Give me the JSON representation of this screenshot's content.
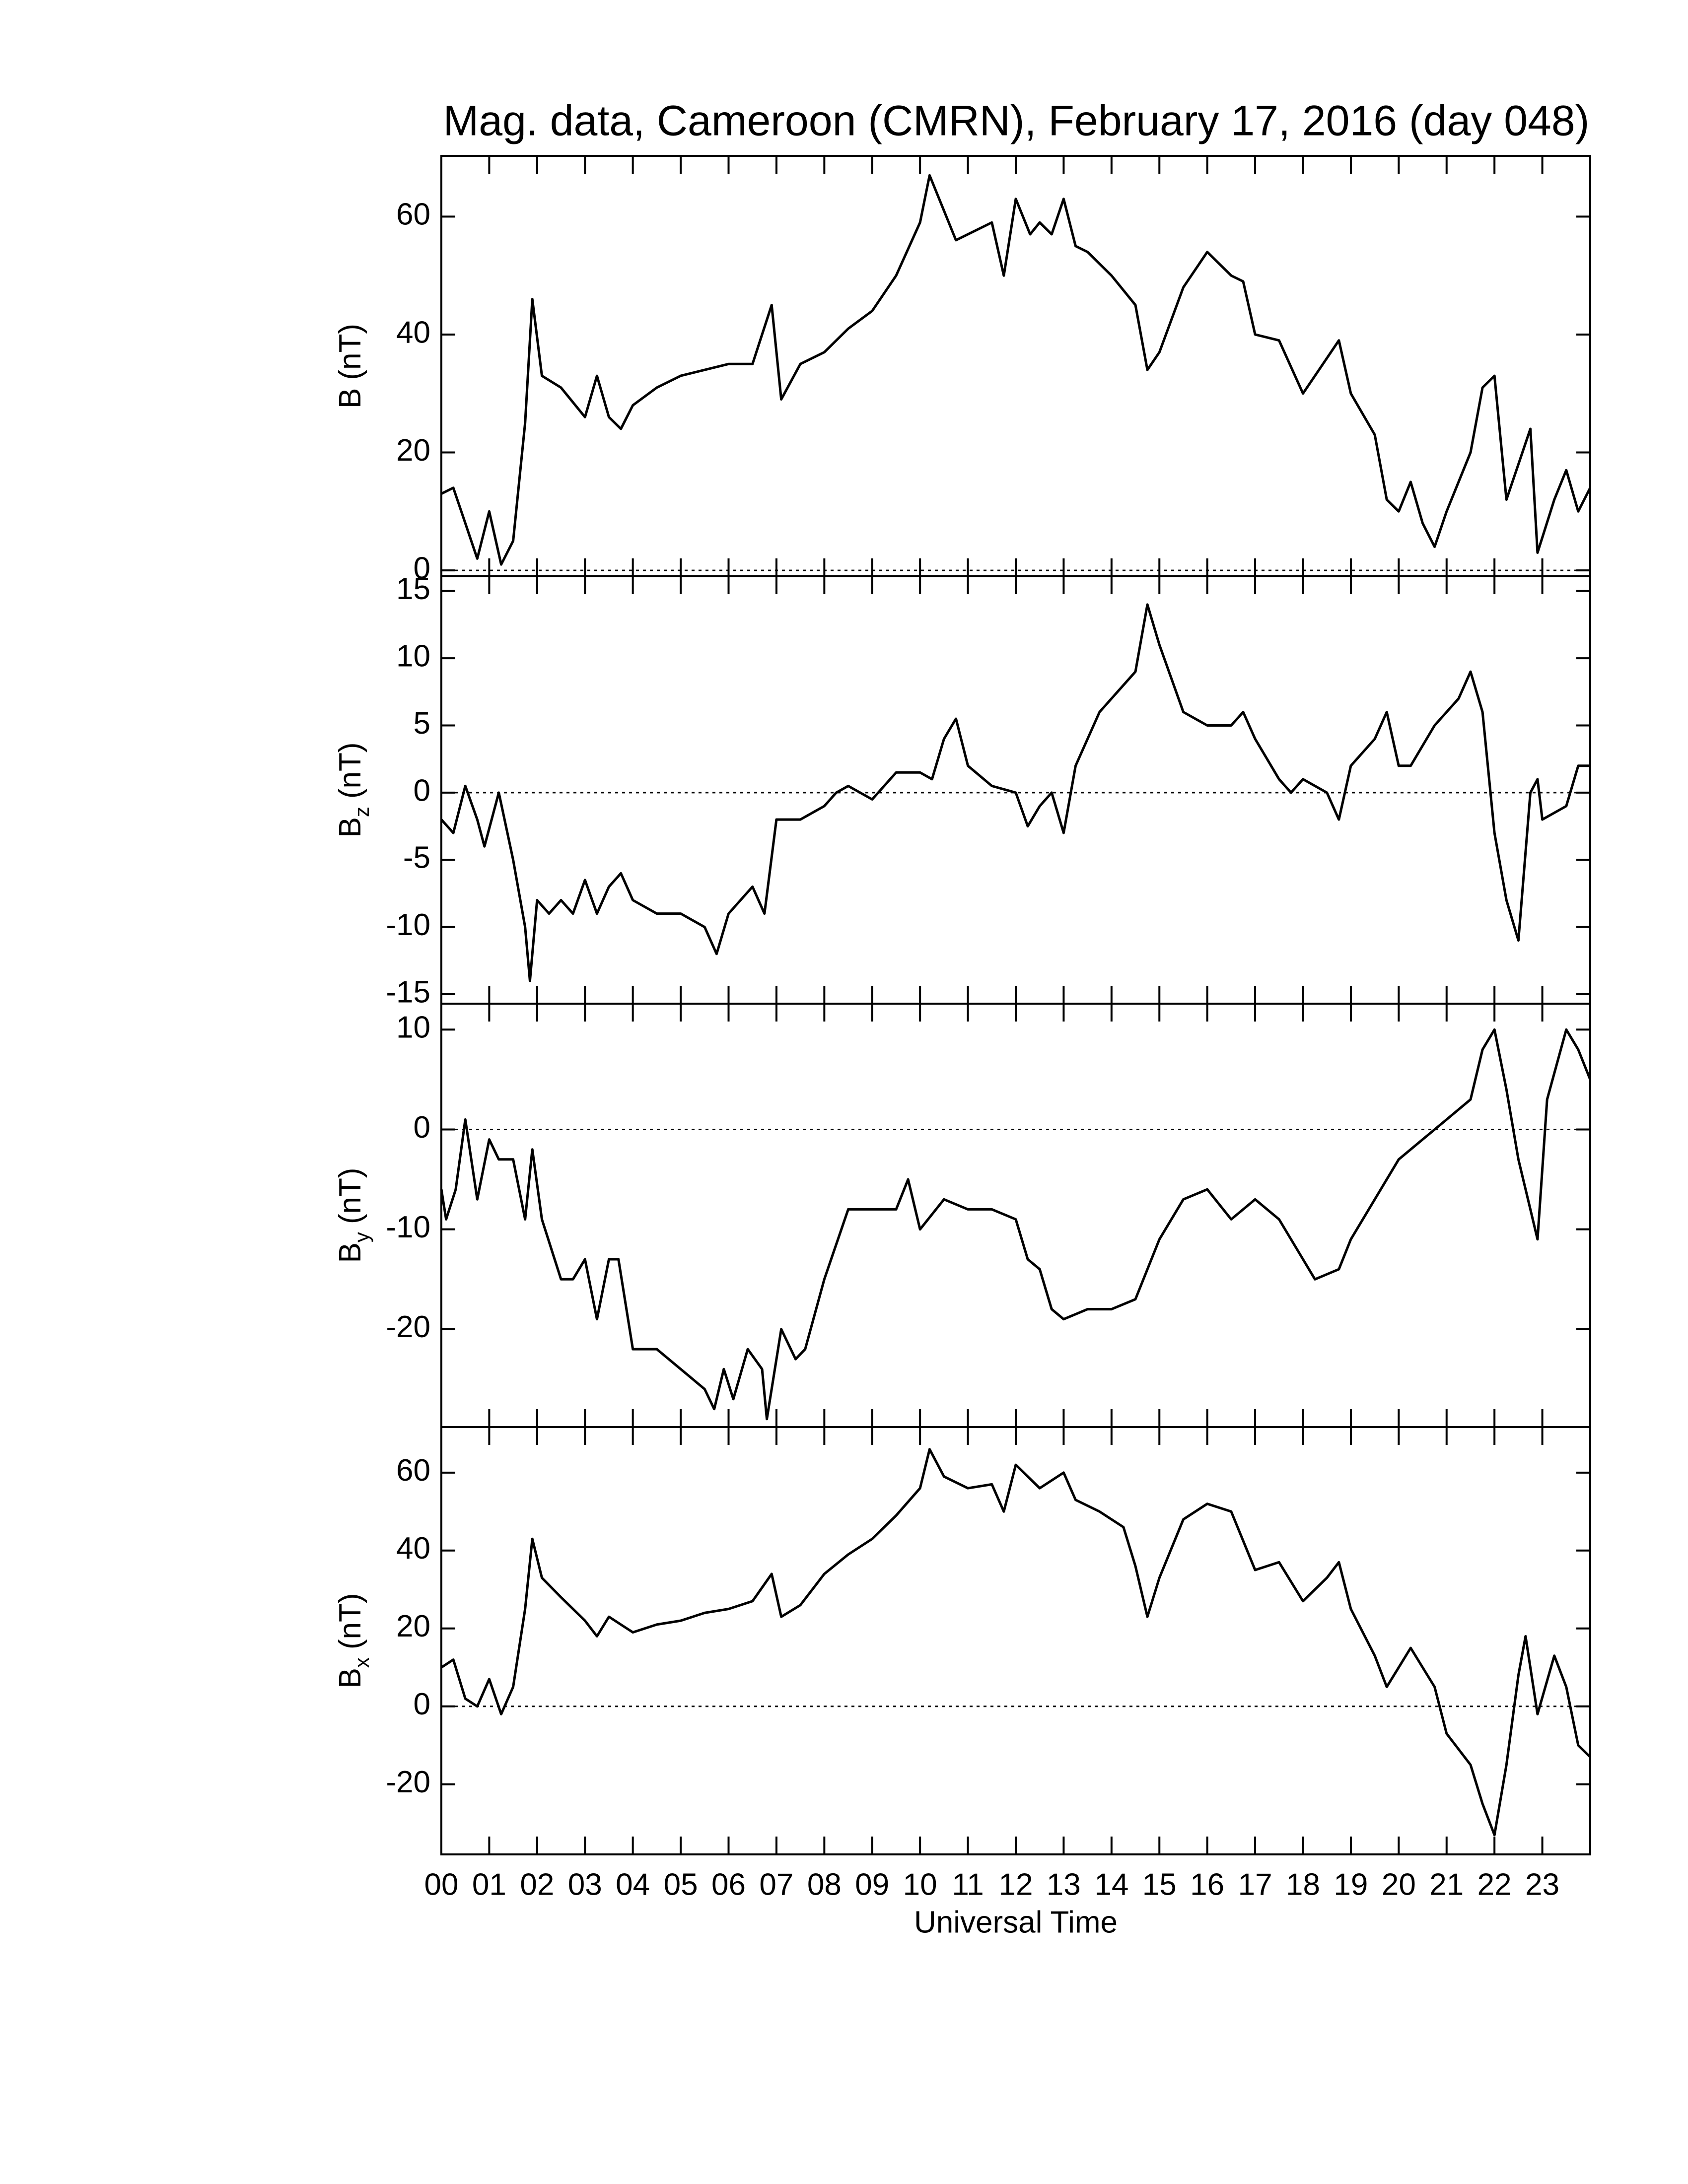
{
  "chart_data": [
    {
      "type": "line",
      "title": "Mag. data, Cameroon (CMRN), February 17, 2016 (day 048)",
      "ylabel": "B",
      "ylabel_unit": "(nT)",
      "xlim": [
        0,
        24
      ],
      "ylim": [
        -1,
        70.3
      ],
      "yticks": [
        0,
        20,
        40,
        60
      ],
      "hline": 0,
      "x": [
        0,
        0.25,
        0.5,
        0.75,
        1,
        1.25,
        1.5,
        1.75,
        1.9,
        2.1,
        2.5,
        3,
        3.25,
        3.5,
        3.75,
        4,
        4.5,
        5,
        5.5,
        6,
        6.5,
        6.9,
        7.1,
        7.5,
        8,
        8.5,
        9,
        9.5,
        10,
        10.2,
        10.5,
        10.75,
        11,
        11.5,
        11.75,
        12,
        12.3,
        12.5,
        12.75,
        13,
        13.25,
        13.5,
        14,
        14.5,
        14.75,
        15,
        15.5,
        16,
        16.5,
        16.75,
        17,
        17.5,
        18,
        18.5,
        18.75,
        19,
        19.5,
        19.75,
        20,
        20.25,
        20.5,
        20.75,
        21,
        21.5,
        21.75,
        22,
        22.25,
        22.5,
        22.75,
        22.9,
        23.25,
        23.5,
        23.75,
        24
      ],
      "series": [
        {
          "color": "#000000",
          "values": [
            13,
            14,
            8,
            2,
            10,
            1,
            5,
            25,
            46,
            33,
            31,
            26,
            33,
            26,
            24,
            28,
            31,
            33,
            34,
            35,
            35,
            45,
            29,
            35,
            37,
            41,
            44,
            50,
            59,
            67,
            61,
            56,
            57,
            59,
            50,
            63,
            57,
            59,
            57,
            63,
            55,
            54,
            50,
            45,
            34,
            37,
            48,
            54,
            50,
            49,
            40,
            39,
            30,
            36,
            39,
            30,
            23,
            12,
            10,
            15,
            8,
            4,
            10,
            20,
            31,
            33,
            12,
            18,
            24,
            3,
            12,
            17,
            10,
            14
          ]
        }
      ]
    },
    {
      "type": "line",
      "ylabel": "B",
      "ylabel_sub": "z",
      "ylabel_unit": "(nT)",
      "xlim": [
        0,
        24
      ],
      "ylim": [
        -15.7,
        16.1
      ],
      "yticks": [
        -15,
        -10,
        -5,
        0,
        5,
        10,
        15
      ],
      "hline": 0,
      "x": [
        0,
        0.25,
        0.5,
        0.75,
        0.9,
        1.2,
        1.5,
        1.75,
        1.85,
        2,
        2.25,
        2.5,
        2.75,
        3,
        3.25,
        3.5,
        3.75,
        4,
        4.5,
        5,
        5.5,
        5.75,
        6,
        6.25,
        6.5,
        6.75,
        7,
        7.5,
        8,
        8.25,
        8.5,
        9,
        9.5,
        10,
        10.25,
        10.5,
        10.75,
        11,
        11.5,
        12,
        12.25,
        12.5,
        12.75,
        13,
        13.25,
        13.75,
        14,
        14.5,
        14.75,
        15,
        15.5,
        16,
        16.5,
        16.75,
        17,
        17.5,
        17.75,
        18,
        18.5,
        18.75,
        19,
        19.5,
        19.75,
        20,
        20.25,
        20.75,
        21.25,
        21.5,
        21.75,
        22,
        22.25,
        22.5,
        22.75,
        22.9,
        23,
        23.5,
        23.75,
        24
      ],
      "series": [
        {
          "color": "#000000",
          "values": [
            -2,
            -3,
            0.5,
            -2,
            -4,
            0,
            -5,
            -10,
            -14,
            -8,
            -9,
            -8,
            -9,
            -6.5,
            -9,
            -7,
            -6,
            -8,
            -9,
            -9,
            -10,
            -12,
            -9,
            -8,
            -7,
            -9,
            -2,
            -2,
            -1,
            0,
            0.5,
            -0.5,
            1.5,
            1.5,
            1,
            4,
            5.5,
            2,
            0.5,
            0,
            -2.5,
            -1,
            0,
            -3,
            2,
            6,
            7,
            9,
            14,
            11,
            6,
            5,
            5,
            6,
            4,
            1,
            0,
            1,
            0,
            -2,
            2,
            4,
            6,
            2,
            2,
            5,
            7,
            9,
            6,
            -3,
            -8,
            -11,
            0,
            1,
            -2,
            -1,
            2,
            2
          ]
        }
      ]
    },
    {
      "type": "line",
      "ylabel": "B",
      "ylabel_sub": "y",
      "ylabel_unit": "(nT)",
      "xlim": [
        0,
        24
      ],
      "ylim": [
        -29.8,
        12.6
      ],
      "yticks": [
        -20,
        -10,
        0,
        10
      ],
      "hline": 0,
      "x": [
        0,
        0.1,
        0.3,
        0.5,
        0.75,
        1,
        1.2,
        1.5,
        1.75,
        1.9,
        2.1,
        2.5,
        2.75,
        3,
        3.25,
        3.5,
        3.7,
        4,
        4.5,
        5,
        5.5,
        5.7,
        5.9,
        6.1,
        6.4,
        6.7,
        6.8,
        7.1,
        7.4,
        7.6,
        8,
        8.5,
        9,
        9.5,
        9.75,
        10,
        10.5,
        11,
        11.5,
        12,
        12.25,
        12.5,
        12.75,
        13,
        13.5,
        14,
        14.5,
        15,
        15.5,
        16,
        16.5,
        17,
        17.5,
        18,
        18.25,
        18.75,
        19,
        19.5,
        20,
        20.5,
        21,
        21.5,
        21.75,
        22,
        22.25,
        22.5,
        22.75,
        22.9,
        23.1,
        23.5,
        23.75,
        24
      ],
      "series": [
        {
          "color": "#000000",
          "values": [
            -6,
            -9,
            -6,
            1,
            -7,
            -1,
            -3,
            -3,
            -9,
            -2,
            -9,
            -15,
            -15,
            -13,
            -19,
            -13,
            -13,
            -22,
            -22,
            -24,
            -26,
            -28,
            -24,
            -27,
            -22,
            -24,
            -29,
            -20,
            -23,
            -22,
            -15,
            -8,
            -8,
            -8,
            -5,
            -10,
            -7,
            -8,
            -8,
            -9,
            -13,
            -14,
            -18,
            -19,
            -18,
            -18,
            -17,
            -11,
            -7,
            -6,
            -9,
            -7,
            -9,
            -13,
            -15,
            -14,
            -11,
            -7,
            -3,
            -1,
            1,
            3,
            8,
            10,
            4,
            -3,
            -8,
            -11,
            3,
            10,
            8,
            5
          ]
        }
      ]
    },
    {
      "type": "line",
      "ylabel": "B",
      "ylabel_sub": "x",
      "ylabel_unit": "(nT)",
      "xlabel": "Universal Time",
      "xlim": [
        0,
        24
      ],
      "ylim": [
        -38,
        71.7
      ],
      "yticks": [
        -20,
        0,
        20,
        40,
        60
      ],
      "hline": 0,
      "xticks": [
        {
          "value": 0,
          "label": "00"
        },
        {
          "value": 1,
          "label": "01"
        },
        {
          "value": 2,
          "label": "02"
        },
        {
          "value": 3,
          "label": "03"
        },
        {
          "value": 4,
          "label": "04"
        },
        {
          "value": 5,
          "label": "05"
        },
        {
          "value": 6,
          "label": "06"
        },
        {
          "value": 7,
          "label": "07"
        },
        {
          "value": 8,
          "label": "08"
        },
        {
          "value": 9,
          "label": "09"
        },
        {
          "value": 10,
          "label": "10"
        },
        {
          "value": 11,
          "label": "11"
        },
        {
          "value": 12,
          "label": "12"
        },
        {
          "value": 13,
          "label": "13"
        },
        {
          "value": 14,
          "label": "14"
        },
        {
          "value": 15,
          "label": "15"
        },
        {
          "value": 16,
          "label": "16"
        },
        {
          "value": 17,
          "label": "17"
        },
        {
          "value": 18,
          "label": "18"
        },
        {
          "value": 19,
          "label": "19"
        },
        {
          "value": 20,
          "label": "20"
        },
        {
          "value": 21,
          "label": "21"
        },
        {
          "value": 22,
          "label": "22"
        },
        {
          "value": 23,
          "label": "23"
        }
      ],
      "x": [
        0,
        0.25,
        0.5,
        0.75,
        1,
        1.25,
        1.5,
        1.75,
        1.9,
        2.1,
        2.5,
        3,
        3.25,
        3.5,
        4,
        4.5,
        5,
        5.5,
        6,
        6.5,
        6.9,
        7.1,
        7.5,
        8,
        8.5,
        9,
        9.5,
        10,
        10.2,
        10.5,
        11,
        11.5,
        11.75,
        12,
        12.5,
        13,
        13.25,
        13.75,
        14.25,
        14.5,
        14.75,
        15,
        15.5,
        16,
        16.5,
        17,
        17.5,
        18,
        18.5,
        18.75,
        19,
        19.5,
        19.75,
        20,
        20.25,
        20.75,
        21,
        21.5,
        21.75,
        22,
        22.25,
        22.5,
        22.65,
        22.9,
        23.25,
        23.5,
        23.75,
        24
      ],
      "series": [
        {
          "color": "#000000",
          "values": [
            10,
            12,
            2,
            0,
            7,
            -2,
            5,
            25,
            43,
            33,
            28,
            22,
            18,
            23,
            19,
            21,
            22,
            24,
            25,
            27,
            34,
            23,
            26,
            34,
            39,
            43,
            49,
            56,
            66,
            59,
            56,
            57,
            50,
            62,
            56,
            60,
            53,
            50,
            46,
            36,
            23,
            33,
            48,
            52,
            50,
            35,
            37,
            27,
            33,
            37,
            25,
            13,
            5,
            10,
            15,
            5,
            -7,
            -15,
            -25,
            -33,
            -15,
            8,
            18,
            -2,
            13,
            5,
            -10,
            -13
          ]
        }
      ]
    }
  ]
}
